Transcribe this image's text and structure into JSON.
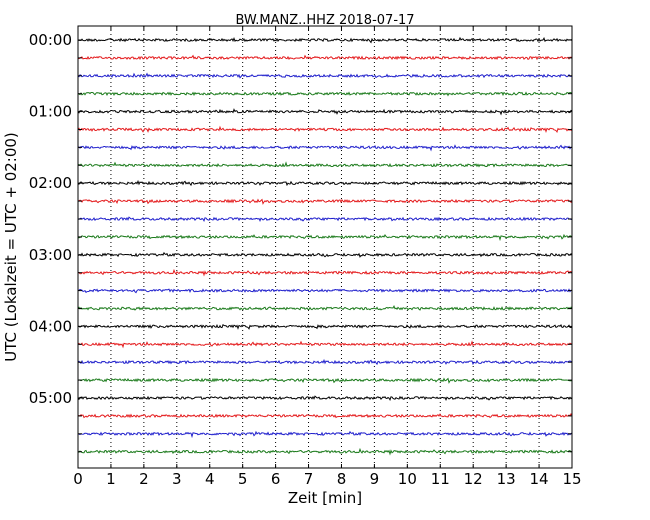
{
  "chart_data": {
    "type": "line",
    "title": "BW.MANZ..HHZ 2018-07-17",
    "xlabel": "Zeit  [min]",
    "ylabel": "UTC (Lokalzeit = UTC + 02:00)",
    "xlim": [
      0,
      15
    ],
    "x_ticks": [
      0,
      1,
      2,
      3,
      4,
      5,
      6,
      7,
      8,
      9,
      10,
      11,
      12,
      13,
      14,
      15
    ],
    "x_grid": "dotted",
    "hour_labels": [
      "00:00",
      "01:00",
      "02:00",
      "03:00",
      "04:00",
      "05:00"
    ],
    "trace_colors": [
      "#000000",
      "#e41a1c",
      "#1f1fcc",
      "#1a7a1a"
    ],
    "trace_count": 24,
    "trace_interval_minutes": 15
  }
}
